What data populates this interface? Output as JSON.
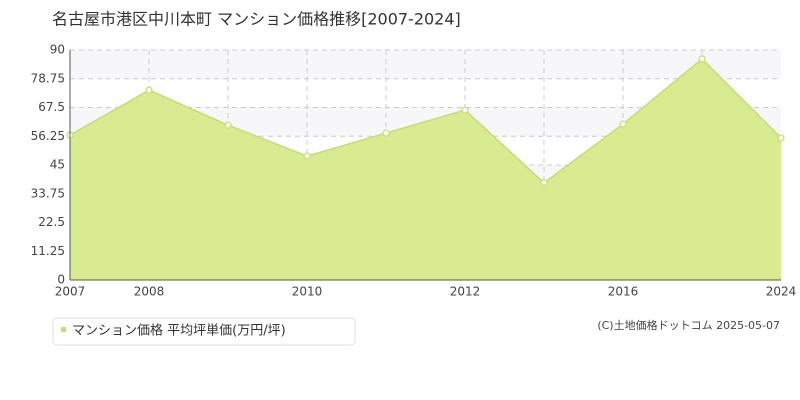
{
  "chart_data": {
    "type": "area",
    "title": "名古屋市港区中川本町 マンション価格推移[2007-2024]",
    "categories": [
      "2007",
      "2008",
      null,
      "2010",
      null,
      "2012",
      null,
      "2016",
      null,
      "2024"
    ],
    "series": [
      {
        "name": "マンション価格 平均坪単価(万円/坪)",
        "color": "#c5e063",
        "values": [
          56.7,
          74.3,
          60.6,
          48.5,
          57.5,
          66.5,
          38.0,
          61.0,
          86.5,
          55.6
        ]
      }
    ],
    "ylim": [
      0,
      90
    ],
    "yticks": [
      0,
      11.25,
      22.5,
      33.75,
      45,
      56.25,
      67.5,
      78.75,
      90
    ],
    "grid": true,
    "copyright": "(C)土地価格ドットコム 2025-05-07"
  }
}
